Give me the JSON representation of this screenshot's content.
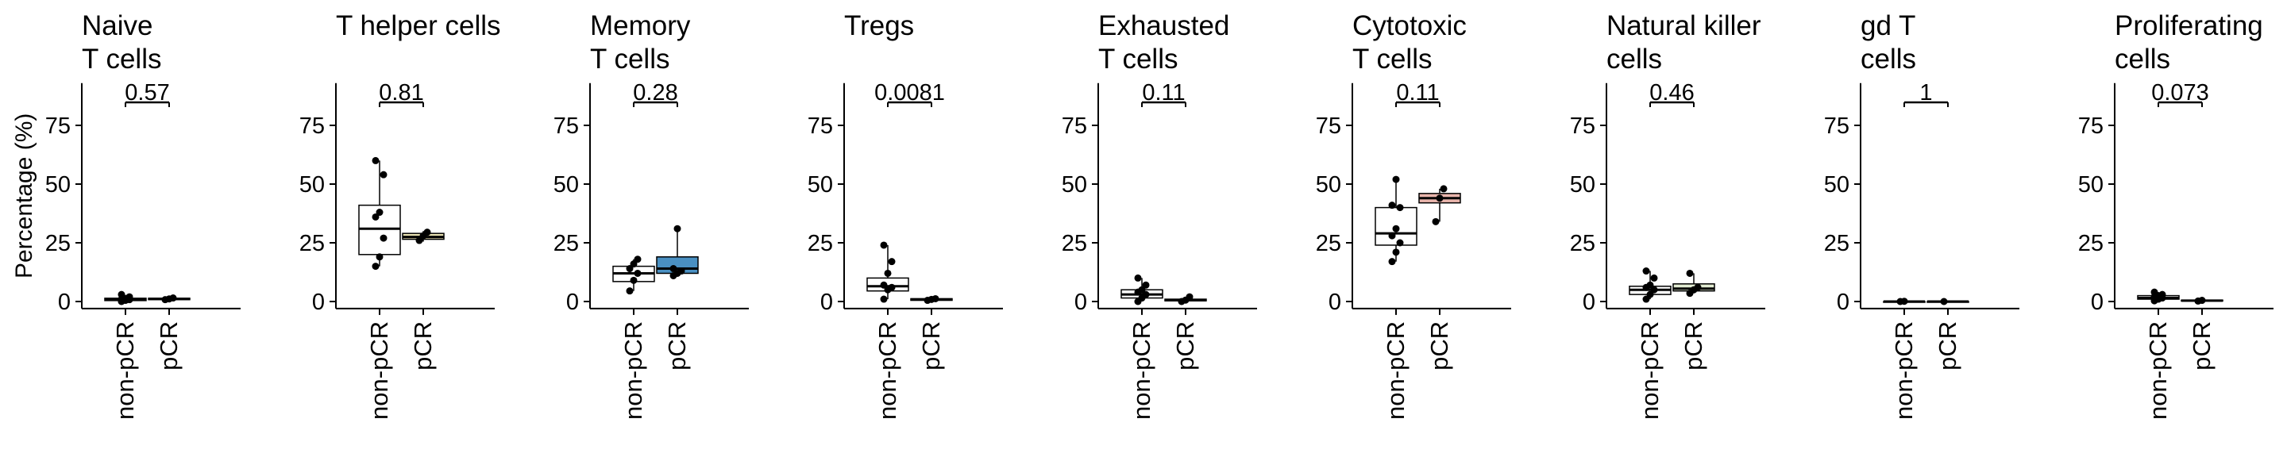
{
  "ylabel": "Percentage (%)",
  "y_ticks": [
    0,
    25,
    50,
    75
  ],
  "ylim": [
    -3,
    93
  ],
  "categories": [
    "non-pCR",
    "pCR"
  ],
  "chart_data": [
    {
      "type": "box",
      "title": [
        "Naive",
        "T cells"
      ],
      "pvalue": "0.57",
      "color": "#f2eedc",
      "boxes": [
        {
          "category": "non-pCR",
          "q1": 0.4,
          "median": 0.9,
          "q3": 1.4,
          "whisker_low": 0,
          "whisker_high": 2.5,
          "points": [
            0,
            0.5,
            0.8,
            1,
            1.3,
            2,
            3
          ]
        },
        {
          "category": "pCR",
          "q1": 0.8,
          "median": 1.1,
          "q3": 1.4,
          "whisker_low": 0.5,
          "whisker_high": 1.6,
          "points": [
            0.8,
            1.1,
            1.5
          ]
        }
      ]
    },
    {
      "type": "box",
      "title": [
        "T helper cells"
      ],
      "pvalue": "0.81",
      "color": "#ece5b5",
      "boxes": [
        {
          "category": "non-pCR",
          "q1": 20,
          "median": 31,
          "q3": 41,
          "whisker_low": 15,
          "whisker_high": 60,
          "points": [
            15,
            19,
            27,
            36,
            38,
            54,
            60
          ]
        },
        {
          "category": "pCR",
          "q1": 26.5,
          "median": 27.5,
          "q3": 29,
          "whisker_low": 25.5,
          "whisker_high": 30,
          "points": [
            26,
            28,
            29.5
          ]
        }
      ]
    },
    {
      "type": "box",
      "title": [
        "Memory",
        "T cells"
      ],
      "pvalue": "0.28",
      "color": "#4a90c2",
      "boxes": [
        {
          "category": "non-pCR",
          "q1": 8.5,
          "median": 12,
          "q3": 15,
          "whisker_low": 4.5,
          "whisker_high": 18,
          "points": [
            4.5,
            9,
            12,
            14,
            16,
            18
          ]
        },
        {
          "category": "pCR",
          "q1": 12,
          "median": 14,
          "q3": 19,
          "whisker_low": 11,
          "whisker_high": 31,
          "points": [
            11,
            12,
            13,
            14,
            31
          ]
        }
      ]
    },
    {
      "type": "box",
      "title": [
        "Tregs"
      ],
      "pvalue": "0.0081",
      "color": "#e8d5e5",
      "boxes": [
        {
          "category": "non-pCR",
          "q1": 4.5,
          "median": 6.5,
          "q3": 10,
          "whisker_low": 1,
          "whisker_high": 24,
          "points": [
            1,
            5,
            6,
            7,
            12,
            17,
            24
          ]
        },
        {
          "category": "pCR",
          "q1": 0.5,
          "median": 0.9,
          "q3": 1.2,
          "whisker_low": 0.3,
          "whisker_high": 1.5,
          "points": [
            0.5,
            0.9,
            1.2
          ]
        }
      ]
    },
    {
      "type": "box",
      "title": [
        "Exhausted",
        "T cells"
      ],
      "pvalue": "0.11",
      "color": "#f0e5d2",
      "boxes": [
        {
          "category": "non-pCR",
          "q1": 1.5,
          "median": 3,
          "q3": 5,
          "whisker_low": 0,
          "whisker_high": 10,
          "points": [
            0,
            1.5,
            3,
            4,
            5,
            7,
            10
          ]
        },
        {
          "category": "pCR",
          "q1": 0.3,
          "median": 0.6,
          "q3": 1,
          "whisker_low": 0,
          "whisker_high": 2,
          "points": [
            0,
            0.6,
            2
          ]
        }
      ]
    },
    {
      "type": "box",
      "title": [
        "Cytotoxic",
        "T cells"
      ],
      "pvalue": "0.11",
      "color": "#e9b5ac",
      "boxes": [
        {
          "category": "non-pCR",
          "q1": 24,
          "median": 29,
          "q3": 40,
          "whisker_low": 17,
          "whisker_high": 52,
          "points": [
            17,
            21,
            25,
            28,
            31,
            40,
            41,
            52
          ]
        },
        {
          "category": "pCR",
          "q1": 42,
          "median": 44,
          "q3": 46,
          "whisker_low": 34,
          "whisker_high": 48,
          "points": [
            34,
            44,
            48
          ]
        }
      ]
    },
    {
      "type": "box",
      "title": [
        "Natural killer",
        "cells"
      ],
      "pvalue": "0.46",
      "color": "#e2ecd2",
      "boxes": [
        {
          "category": "non-pCR",
          "q1": 3,
          "median": 5,
          "q3": 6.5,
          "whisker_low": 1,
          "whisker_high": 13,
          "points": [
            1,
            3,
            5,
            6,
            7,
            10,
            13
          ]
        },
        {
          "category": "pCR",
          "q1": 4.5,
          "median": 5.5,
          "q3": 7.5,
          "whisker_low": 3.5,
          "whisker_high": 12,
          "points": [
            3.5,
            5,
            6,
            12
          ]
        }
      ]
    },
    {
      "type": "box",
      "title": [
        "gd T",
        "cells"
      ],
      "pvalue": "1",
      "color": "#ffffff",
      "boxes": [
        {
          "category": "non-pCR",
          "q1": 0,
          "median": 0,
          "q3": 0,
          "whisker_low": 0,
          "whisker_high": 0.2,
          "points": [
            0,
            0.1
          ]
        },
        {
          "category": "pCR",
          "q1": 0,
          "median": 0,
          "q3": 0,
          "whisker_low": 0,
          "whisker_high": 0.1,
          "points": [
            0
          ]
        }
      ]
    },
    {
      "type": "box",
      "title": [
        "Proliferating",
        "cells"
      ],
      "pvalue": "0.073",
      "color": "#f3d9d5",
      "boxes": [
        {
          "category": "non-pCR",
          "q1": 1,
          "median": 1.5,
          "q3": 2.5,
          "whisker_low": 0.3,
          "whisker_high": 4,
          "points": [
            0.3,
            1,
            1.5,
            2,
            2.5,
            3,
            4
          ]
        },
        {
          "category": "pCR",
          "q1": 0.2,
          "median": 0.4,
          "q3": 0.6,
          "whisker_low": 0.1,
          "whisker_high": 0.8,
          "points": [
            0.2,
            0.5
          ]
        }
      ]
    }
  ]
}
